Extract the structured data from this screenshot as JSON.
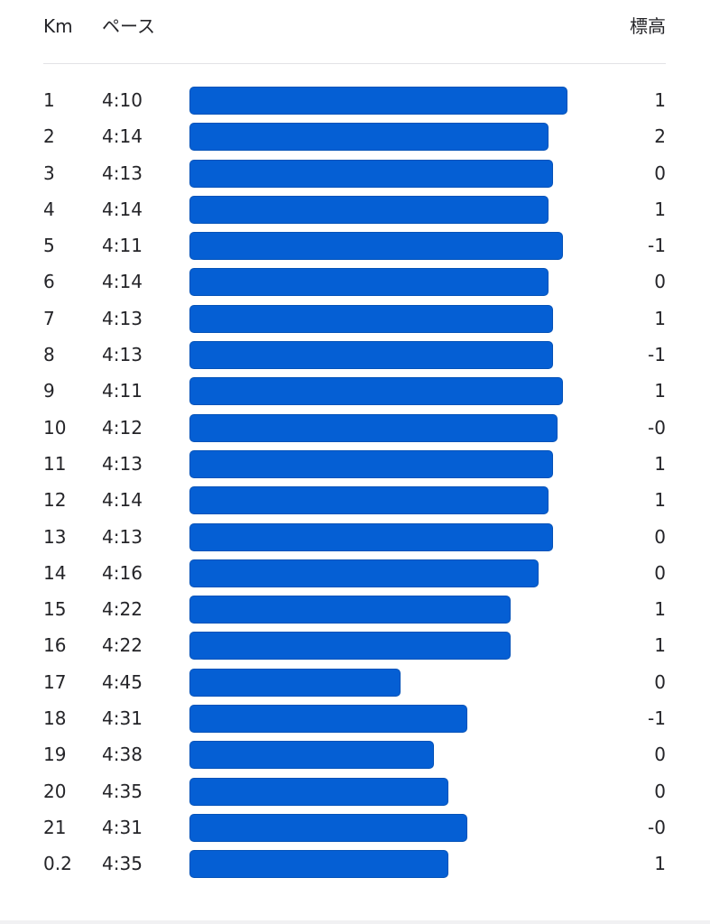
{
  "header": {
    "km_label": "Km",
    "pace_label": "ペース",
    "elevation_label": "標高"
  },
  "colors": {
    "bar": "#055fd4",
    "text": "#242428"
  },
  "splits": [
    {
      "km": "1",
      "pace": "4:10",
      "elevation": "1",
      "pace_seconds": 250
    },
    {
      "km": "2",
      "pace": "4:14",
      "elevation": "2",
      "pace_seconds": 254
    },
    {
      "km": "3",
      "pace": "4:13",
      "elevation": "0",
      "pace_seconds": 253
    },
    {
      "km": "4",
      "pace": "4:14",
      "elevation": "1",
      "pace_seconds": 254
    },
    {
      "km": "5",
      "pace": "4:11",
      "elevation": "-1",
      "pace_seconds": 251
    },
    {
      "km": "6",
      "pace": "4:14",
      "elevation": "0",
      "pace_seconds": 254
    },
    {
      "km": "7",
      "pace": "4:13",
      "elevation": "1",
      "pace_seconds": 253
    },
    {
      "km": "8",
      "pace": "4:13",
      "elevation": "-1",
      "pace_seconds": 253
    },
    {
      "km": "9",
      "pace": "4:11",
      "elevation": "1",
      "pace_seconds": 251
    },
    {
      "km": "10",
      "pace": "4:12",
      "elevation": "-0",
      "pace_seconds": 252
    },
    {
      "km": "11",
      "pace": "4:13",
      "elevation": "1",
      "pace_seconds": 253
    },
    {
      "km": "12",
      "pace": "4:14",
      "elevation": "1",
      "pace_seconds": 254
    },
    {
      "km": "13",
      "pace": "4:13",
      "elevation": "0",
      "pace_seconds": 253
    },
    {
      "km": "14",
      "pace": "4:16",
      "elevation": "0",
      "pace_seconds": 256
    },
    {
      "km": "15",
      "pace": "4:22",
      "elevation": "1",
      "pace_seconds": 262
    },
    {
      "km": "16",
      "pace": "4:22",
      "elevation": "1",
      "pace_seconds": 262
    },
    {
      "km": "17",
      "pace": "4:45",
      "elevation": "0",
      "pace_seconds": 285
    },
    {
      "km": "18",
      "pace": "4:31",
      "elevation": "-1",
      "pace_seconds": 271
    },
    {
      "km": "19",
      "pace": "4:38",
      "elevation": "0",
      "pace_seconds": 278
    },
    {
      "km": "20",
      "pace": "4:35",
      "elevation": "0",
      "pace_seconds": 275
    },
    {
      "km": "21",
      "pace": "4:31",
      "elevation": "-0",
      "pace_seconds": 271
    },
    {
      "km": "0.2",
      "pace": "4:35",
      "elevation": "1",
      "pace_seconds": 275
    }
  ]
}
